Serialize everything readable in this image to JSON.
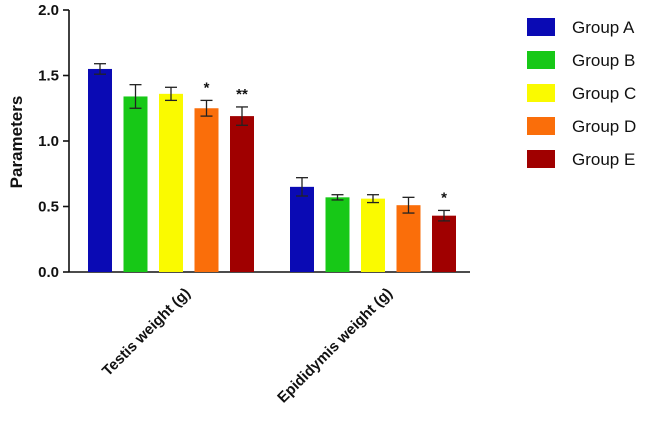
{
  "chart_data": {
    "type": "bar",
    "ylabel": "Parameters",
    "xlabel": "",
    "ylim": [
      0,
      2.0
    ],
    "yticks": [
      "0.0",
      "0.5",
      "1.0",
      "1.5",
      "2.0"
    ],
    "categories": [
      "Testis weight (g)",
      "Epididymis weight (g)"
    ],
    "series": [
      {
        "name": "Group A",
        "color": "#0a0ab4",
        "values": [
          1.55,
          0.65
        ],
        "errors": [
          0.04,
          0.07
        ],
        "significance": [
          "",
          ""
        ]
      },
      {
        "name": "Group B",
        "color": "#17c817",
        "values": [
          1.34,
          0.57
        ],
        "errors": [
          0.09,
          0.02
        ],
        "significance": [
          "",
          ""
        ]
      },
      {
        "name": "Group C",
        "color": "#fafa00",
        "values": [
          1.36,
          0.56
        ],
        "errors": [
          0.05,
          0.03
        ],
        "significance": [
          "",
          ""
        ]
      },
      {
        "name": "Group D",
        "color": "#fa6e0a",
        "values": [
          1.25,
          0.51
        ],
        "errors": [
          0.06,
          0.06
        ],
        "significance": [
          "*",
          ""
        ]
      },
      {
        "name": "Group E",
        "color": "#a00000",
        "values": [
          1.19,
          0.43
        ],
        "errors": [
          0.07,
          0.04
        ],
        "significance": [
          "**",
          "*"
        ]
      }
    ],
    "legend_position": "right",
    "grid": false
  }
}
